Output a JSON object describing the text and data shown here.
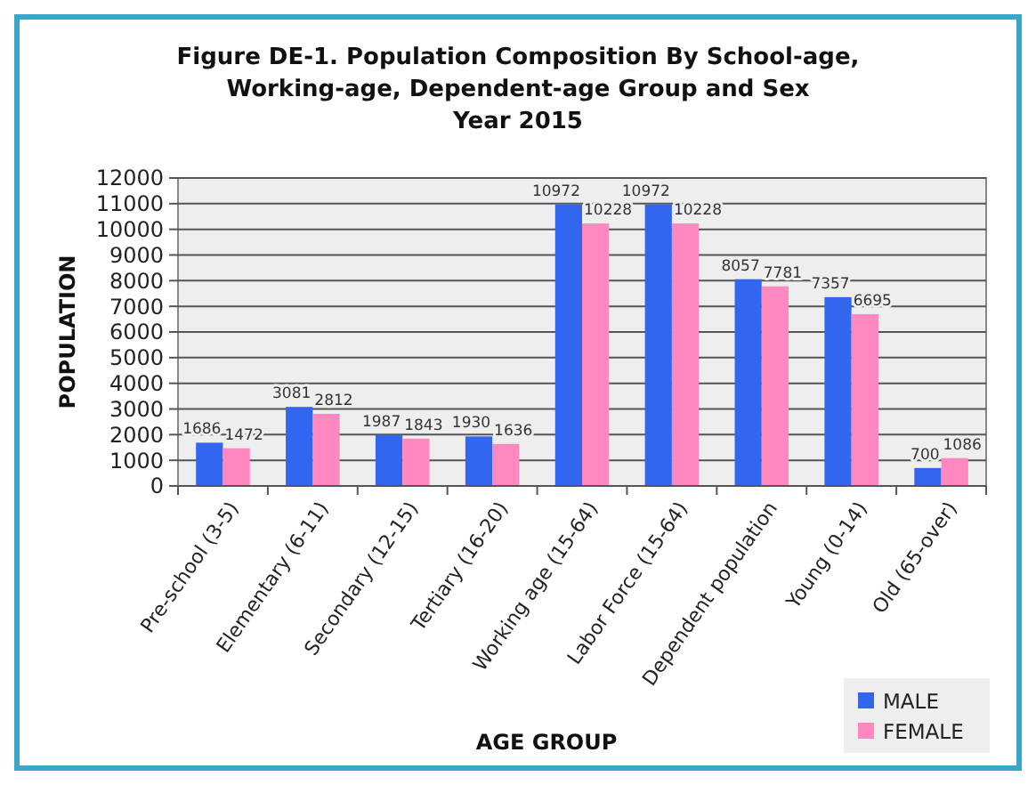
{
  "chart_data": {
    "type": "bar",
    "title": "Figure DE-1. Population Composition By School-age,\nWorking-age, Dependent-age Group and Sex\nYear 2015",
    "xlabel": "AGE GROUP",
    "ylabel": "POPULATION",
    "categories": [
      "Pre-school (3-5)",
      "Elementary (6-11)",
      "Secondary (12-15)",
      "Tertiary (16-20)",
      "Working age (15-64)",
      "Labor Force (15-64)",
      "Dependent population",
      "Young (0-14)",
      "Old (65-over)"
    ],
    "series": [
      {
        "name": "MALE",
        "color": "#3366ee",
        "values": [
          1686,
          3081,
          1987,
          1930,
          10972,
          10972,
          8057,
          7357,
          700
        ]
      },
      {
        "name": "FEMALE",
        "color": "#ff88c0",
        "values": [
          1472,
          2812,
          1843,
          1636,
          10228,
          10228,
          7781,
          6695,
          1086
        ]
      }
    ],
    "ylim": [
      0,
      12000
    ],
    "yticks": [
      0,
      1000,
      2000,
      3000,
      4000,
      5000,
      6000,
      7000,
      8000,
      9000,
      10000,
      11000,
      12000
    ],
    "grid": "y",
    "legend": "bottom right",
    "data_labels": true
  }
}
